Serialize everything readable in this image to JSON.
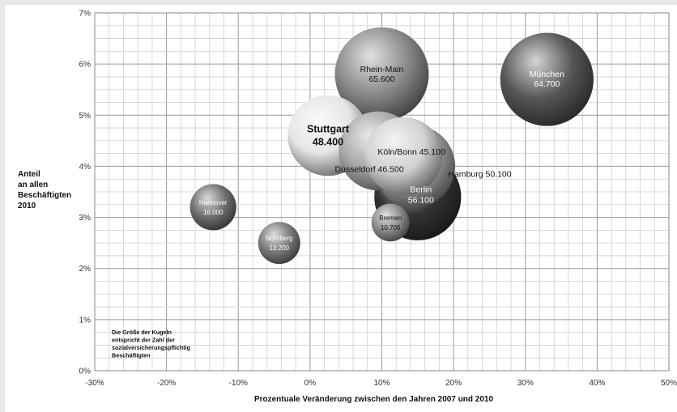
{
  "chart_data": {
    "type": "bubble",
    "xlabel": "Prozentuale Veränderung zwischen den Jahren 2007 und 2010",
    "ylabel": [
      "Anteil",
      "an allen",
      "Beschäftigten",
      "2010"
    ],
    "x_ticks": [
      "-30%",
      "-20%",
      "-10%",
      "0%",
      "10%",
      "20%",
      "30%",
      "40%",
      "50%"
    ],
    "y_ticks": [
      "0%",
      "1%",
      "2%",
      "3%",
      "4%",
      "5%",
      "6%",
      "7%"
    ],
    "xlim": [
      -30,
      50
    ],
    "ylim": [
      0,
      7
    ],
    "grid": true,
    "note": [
      "Die Größe der Kugeln",
      "entspricht der Zahl der",
      "sozialversicherungspflichtig",
      "Beschäftigten"
    ],
    "bubbles": [
      {
        "name": "München",
        "value": "64.700",
        "x": 33.0,
        "y": 5.7,
        "size": 64700,
        "color": "#555555"
      },
      {
        "name": "Rhein-Main",
        "value": "65.600",
        "x": 10.0,
        "y": 5.8,
        "size": 65600,
        "color": "#8a8a8a"
      },
      {
        "name": "Berlin",
        "value": "56.100",
        "x": 15.0,
        "y": 3.4,
        "size": 56100,
        "color": "#333333"
      },
      {
        "name": "Hamburg",
        "value": "50.100",
        "x": 14.5,
        "y": 4.0,
        "size": 50100,
        "color": "#9a9a9a"
      },
      {
        "name": "Düsseldorf",
        "value": "46.500",
        "x": 9.5,
        "y": 4.3,
        "size": 46500,
        "color": "#a8a8a8"
      },
      {
        "name": "Köln/Bonn",
        "value": "45.100",
        "x": 13.0,
        "y": 4.2,
        "size": 45100,
        "color": "#d2d2d2"
      },
      {
        "name": "Stuttgart",
        "value": "48.400",
        "x": 2.5,
        "y": 4.6,
        "size": 48400,
        "color": "#e6e6e6"
      },
      {
        "name": "Hannover",
        "value": "16.000",
        "x": -13.5,
        "y": 3.2,
        "size": 16000,
        "color": "#6e6e6e"
      },
      {
        "name": "Nürnberg",
        "value": "13.200",
        "x": -4.3,
        "y": 2.5,
        "size": 13200,
        "color": "#7a7a7a"
      },
      {
        "name": "Bremen",
        "value": "10.700",
        "x": 11.2,
        "y": 2.9,
        "size": 10700,
        "color": "#8c8c8c"
      }
    ]
  }
}
